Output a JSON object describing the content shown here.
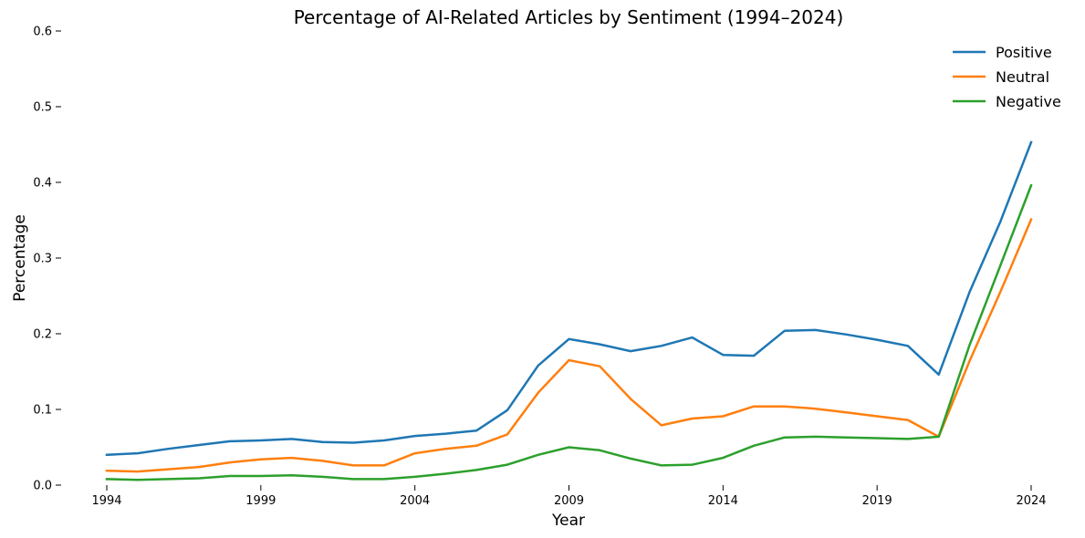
{
  "chart_data": {
    "type": "line",
    "title": "Percentage of AI-Related Articles by Sentiment (1994–2024)",
    "xlabel": "Year",
    "ylabel": "Percentage",
    "xlim": [
      1994,
      2024
    ],
    "ylim": [
      0,
      0.6
    ],
    "xticks": [
      1994,
      1999,
      2004,
      2009,
      2014,
      2019,
      2024
    ],
    "xtick_labels": [
      "1994",
      "1999",
      "2004",
      "2009",
      "2014",
      "2019",
      "2024"
    ],
    "yticks": [
      0,
      0.1,
      0.2,
      0.3,
      0.4,
      0.5,
      0.6
    ],
    "ytick_labels": [
      "0.0",
      "0.1",
      "0.2",
      "0.3",
      "0.4",
      "0.5",
      "0.6"
    ],
    "grid": false,
    "legend_position": "top-right",
    "x": [
      1994,
      1995,
      1996,
      1997,
      1998,
      1999,
      2000,
      2001,
      2002,
      2003,
      2004,
      2005,
      2006,
      2007,
      2008,
      2009,
      2010,
      2011,
      2012,
      2013,
      2014,
      2015,
      2016,
      2017,
      2018,
      2019,
      2020,
      2021,
      2022,
      2023,
      2024
    ],
    "series": [
      {
        "name": "Positive",
        "color": "#1f77b4",
        "values": [
          0.04,
          0.042,
          0.048,
          0.053,
          0.058,
          0.059,
          0.061,
          0.057,
          0.056,
          0.059,
          0.065,
          0.068,
          0.072,
          0.099,
          0.158,
          0.193,
          0.186,
          0.177,
          0.184,
          0.195,
          0.172,
          0.171,
          0.204,
          0.205,
          0.199,
          0.192,
          0.184,
          0.146,
          0.255,
          0.348,
          0.453
        ]
      },
      {
        "name": "Neutral",
        "color": "#ff7f0e",
        "values": [
          0.019,
          0.018,
          0.021,
          0.024,
          0.03,
          0.034,
          0.036,
          0.032,
          0.026,
          0.026,
          0.042,
          0.048,
          0.052,
          0.067,
          0.122,
          0.165,
          0.157,
          0.114,
          0.079,
          0.088,
          0.091,
          0.104,
          0.104,
          0.101,
          0.096,
          0.091,
          0.086,
          0.064,
          0.164,
          0.255,
          0.351
        ]
      },
      {
        "name": "Negative",
        "color": "#2ca02c",
        "values": [
          0.008,
          0.007,
          0.008,
          0.009,
          0.012,
          0.012,
          0.013,
          0.011,
          0.008,
          0.008,
          0.011,
          0.015,
          0.02,
          0.027,
          0.04,
          0.05,
          0.046,
          0.035,
          0.026,
          0.027,
          0.036,
          0.052,
          0.063,
          0.064,
          0.063,
          0.062,
          0.061,
          0.064,
          0.185,
          0.29,
          0.396
        ]
      }
    ]
  }
}
